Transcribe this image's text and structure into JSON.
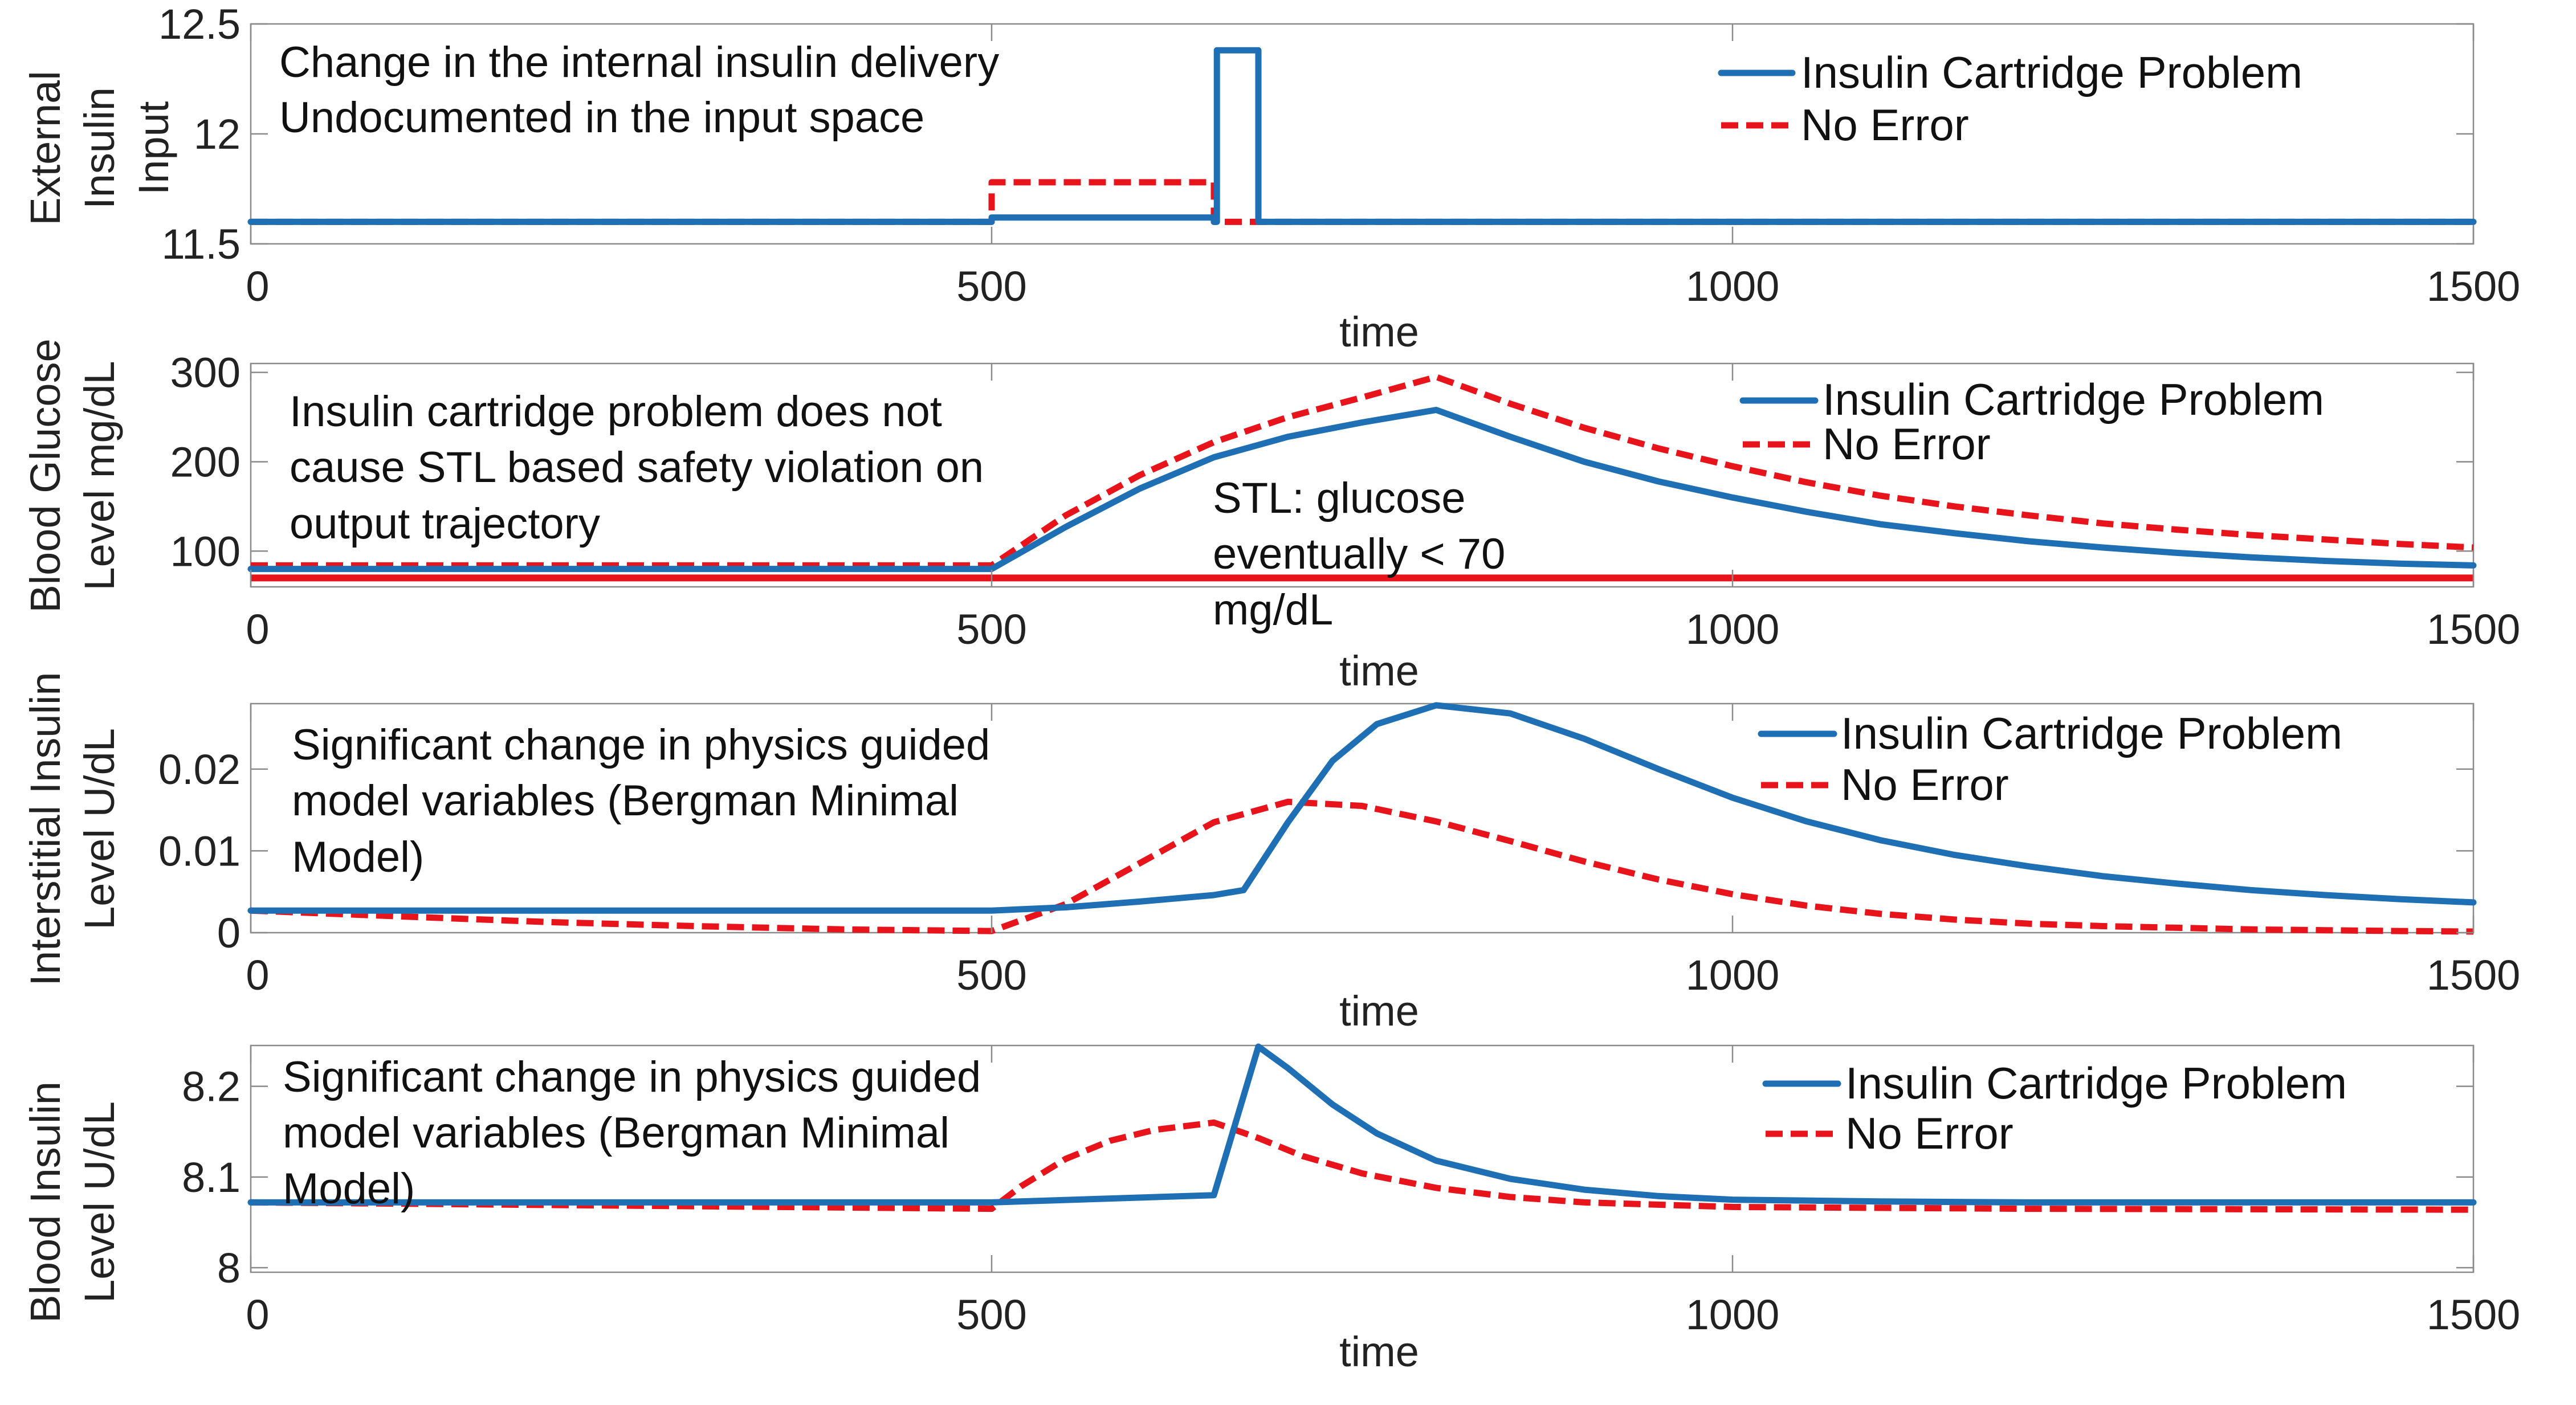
{
  "figure": {
    "legend": [
      "Insulin Cartridge Problem",
      "No Error"
    ],
    "colors": {
      "cartridge": "#1f6fb4",
      "no_error": "#e8141c"
    }
  },
  "chart_data": [
    {
      "type": "line",
      "title": "",
      "xlabel": "time",
      "ylabel_lines": [
        "External",
        "Insulin",
        "Input"
      ],
      "xlim": [
        0,
        1500
      ],
      "ylim": [
        11.5,
        12.5
      ],
      "xticks": [
        0,
        500,
        1000,
        1500
      ],
      "xtick_labels": [
        "0",
        "500",
        "1000",
        "1500"
      ],
      "yticks": [
        11.5,
        12,
        12.5
      ],
      "ytick_labels": [
        "11.5",
        "12",
        "12.5"
      ],
      "annotations": [
        "Change in the internal insulin delivery",
        "Undocumented in the input space"
      ],
      "legend": [
        "Insulin Cartridge Problem",
        "No Error"
      ],
      "legend_placement": "top-right",
      "series": [
        {
          "name": "Insulin Cartridge Problem",
          "style": "solid",
          "x": [
            0,
            500,
            500,
            650,
            650,
            652,
            652,
            680,
            680,
            682,
            682,
            1500
          ],
          "y": [
            11.6,
            11.6,
            11.62,
            11.62,
            11.6,
            11.6,
            12.38,
            12.38,
            11.6,
            11.6,
            11.6,
            11.6
          ]
        },
        {
          "name": "No Error",
          "style": "dashed",
          "x": [
            0,
            500,
            500,
            650,
            650,
            1500
          ],
          "y": [
            11.6,
            11.6,
            11.78,
            11.78,
            11.6,
            11.6
          ]
        }
      ]
    },
    {
      "type": "line",
      "title": "",
      "xlabel": "time",
      "ylabel_lines": [
        "Blood Glucose",
        "Level mg/dL"
      ],
      "xlim": [
        0,
        1500
      ],
      "ylim": [
        60,
        310
      ],
      "xticks": [
        0,
        500,
        1000,
        1500
      ],
      "xtick_labels": [
        "0",
        "500",
        "1000",
        "1500"
      ],
      "yticks": [
        100,
        200,
        300
      ],
      "ytick_labels": [
        "100",
        "200",
        "300"
      ],
      "annotations": [
        "Insulin cartridge problem does not",
        "cause STL based safety violation on",
        "output trajectory"
      ],
      "stl_annotation": [
        "STL: glucose",
        "eventually < 70",
        "mg/dL"
      ],
      "threshold": 70,
      "legend": [
        "Insulin Cartridge Problem",
        "No Error"
      ],
      "legend_placement": "top-right",
      "series": [
        {
          "name": "Insulin Cartridge Problem",
          "style": "solid",
          "x": [
            0,
            500,
            550,
            600,
            650,
            700,
            750,
            800,
            850,
            900,
            950,
            1000,
            1050,
            1100,
            1150,
            1200,
            1250,
            1300,
            1350,
            1400,
            1450,
            1500
          ],
          "y": [
            80,
            80,
            127,
            170,
            205,
            228,
            244,
            258,
            228,
            200,
            178,
            160,
            144,
            130,
            120,
            111,
            104,
            98,
            93,
            89,
            86,
            84
          ]
        },
        {
          "name": "No Error",
          "style": "dashed",
          "x": [
            0,
            500,
            550,
            600,
            650,
            700,
            750,
            800,
            850,
            900,
            950,
            1000,
            1050,
            1100,
            1150,
            1200,
            1250,
            1300,
            1350,
            1400,
            1450,
            1500
          ],
          "y": [
            84,
            84,
            140,
            185,
            222,
            250,
            272,
            295,
            265,
            238,
            215,
            195,
            177,
            162,
            150,
            140,
            131,
            124,
            118,
            113,
            108,
            104
          ]
        }
      ]
    },
    {
      "type": "line",
      "title": "",
      "xlabel": "time",
      "ylabel_lines": [
        "Interstitial Insulin",
        "Level U/dL"
      ],
      "xlim": [
        0,
        1500
      ],
      "ylim": [
        0,
        0.028
      ],
      "xticks": [
        0,
        500,
        1000,
        1500
      ],
      "xtick_labels": [
        "0",
        "500",
        "1000",
        "1500"
      ],
      "yticks": [
        0,
        0.01,
        0.02
      ],
      "ytick_labels": [
        "0",
        "0.01",
        "0.02"
      ],
      "annotations": [
        "Significant change in physics guided",
        "model variables (Bergman Minimal",
        "Model)"
      ],
      "legend": [
        "Insulin Cartridge Problem",
        "No Error"
      ],
      "legend_placement": "top-right",
      "series": [
        {
          "name": "Insulin Cartridge Problem",
          "style": "solid",
          "x": [
            0,
            100,
            200,
            300,
            400,
            500,
            550,
            600,
            650,
            670,
            700,
            730,
            760,
            800,
            850,
            900,
            950,
            1000,
            1050,
            1100,
            1150,
            1200,
            1250,
            1300,
            1350,
            1400,
            1450,
            1500
          ],
          "y": [
            0.0027,
            0.0027,
            0.0027,
            0.0027,
            0.0027,
            0.0027,
            0.0031,
            0.0038,
            0.0046,
            0.0052,
            0.0135,
            0.021,
            0.0255,
            0.0278,
            0.0268,
            0.0237,
            0.02,
            0.0165,
            0.0136,
            0.0113,
            0.0095,
            0.0081,
            0.0069,
            0.006,
            0.0052,
            0.0046,
            0.0041,
            0.0037
          ]
        },
        {
          "name": "No Error",
          "style": "dashed",
          "x": [
            0,
            100,
            200,
            300,
            400,
            500,
            550,
            600,
            650,
            700,
            750,
            800,
            850,
            900,
            950,
            1000,
            1050,
            1100,
            1150,
            1200,
            1250,
            1300,
            1350,
            1400,
            1450,
            1500
          ],
          "y": [
            0.0027,
            0.002,
            0.0013,
            0.0008,
            0.0004,
            0.0002,
            0.0035,
            0.0085,
            0.0135,
            0.016,
            0.0155,
            0.0136,
            0.0112,
            0.0087,
            0.0065,
            0.0047,
            0.0033,
            0.0023,
            0.0016,
            0.0011,
            0.0008,
            0.0006,
            0.0004,
            0.0003,
            0.0002,
            0.0001
          ]
        }
      ]
    },
    {
      "type": "line",
      "title": "",
      "xlabel": "time",
      "ylabel_lines": [
        "Blood Insulin",
        "Level U/dL"
      ],
      "xlim": [
        0,
        1500
      ],
      "ylim": [
        7.995,
        8.245
      ],
      "xticks": [
        0,
        500,
        1000,
        1500
      ],
      "xtick_labels": [
        "0",
        "500",
        "1000",
        "1500"
      ],
      "yticks": [
        8,
        8.1,
        8.2
      ],
      "ytick_labels": [
        "8",
        "8.1",
        "8.2"
      ],
      "annotations": [
        "Significant change in physics guided",
        "model variables (Bergman Minimal",
        "Model)"
      ],
      "legend": [
        "Insulin Cartridge Problem",
        "No Error"
      ],
      "legend_placement": "top-right",
      "series": [
        {
          "name": "Insulin Cartridge Problem",
          "style": "solid",
          "x": [
            0,
            500,
            650,
            680,
            700,
            730,
            760,
            800,
            850,
            900,
            950,
            1000,
            1100,
            1200,
            1500
          ],
          "y": [
            8.072,
            8.072,
            8.08,
            8.245,
            8.22,
            8.18,
            8.148,
            8.118,
            8.098,
            8.086,
            8.079,
            8.075,
            8.073,
            8.072,
            8.072
          ]
        },
        {
          "name": "No Error",
          "style": "dashed",
          "x": [
            0,
            500,
            520,
            550,
            580,
            610,
            650,
            680,
            710,
            750,
            800,
            850,
            900,
            1000,
            1100,
            1200,
            1500
          ],
          "y": [
            8.072,
            8.065,
            8.09,
            8.12,
            8.14,
            8.152,
            8.16,
            8.143,
            8.123,
            8.104,
            8.088,
            8.078,
            8.072,
            8.067,
            8.066,
            8.065,
            8.064
          ]
        }
      ]
    }
  ]
}
